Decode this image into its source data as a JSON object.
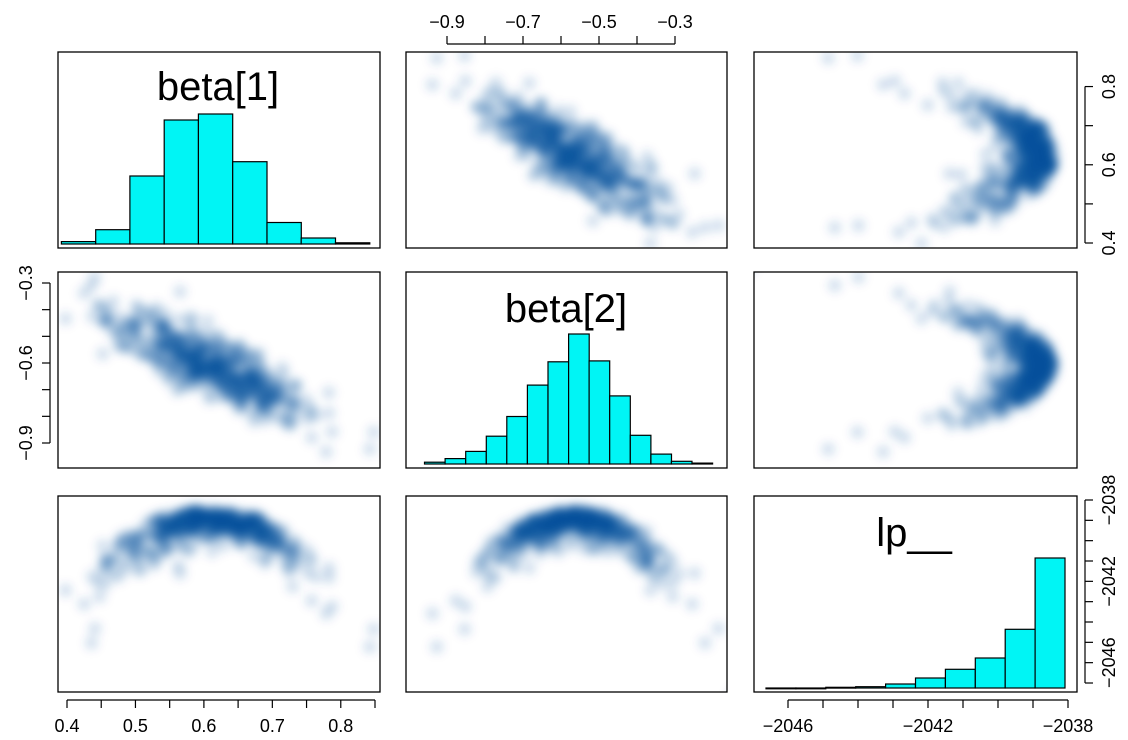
{
  "chart_data": {
    "type": "pairs",
    "variables": [
      "beta[1]",
      "beta[2]",
      "lp__"
    ],
    "hist_color": "#00f5f5",
    "density_color": "#08519c",
    "axes": {
      "beta1": {
        "range": [
          0.38,
          0.86
        ],
        "ticks": [
          "0.4",
          "0.5",
          "0.6",
          "0.7",
          "0.8"
        ],
        "tick_values": [
          0.4,
          0.5,
          0.6,
          0.7,
          0.8
        ]
      },
      "beta2": {
        "range": [
          -1.0,
          -0.27
        ],
        "ticks": [
          "−0.9",
          "−0.7",
          "−0.5",
          "−0.3"
        ],
        "tick_values": [
          -0.9,
          -0.7,
          -0.5,
          -0.3
        ]
      },
      "beta2_left": {
        "ticks": [
          "−0.3",
          "−0.6",
          "−0.9"
        ],
        "tick_values": [
          -0.3,
          -0.6,
          -0.9
        ]
      },
      "beta1_right": {
        "ticks": [
          "0.4",
          "0.6",
          "0.8"
        ],
        "tick_values": [
          0.4,
          0.6,
          0.8
        ]
      },
      "lp": {
        "range": [
          -2047.5,
          -2037.5
        ],
        "ticks": [
          "−2046",
          "−2042",
          "−2038"
        ],
        "tick_values": [
          -2046,
          -2042,
          -2038
        ]
      },
      "lp_right": {
        "ticks": [
          "−2038",
          "−2042",
          "−2046"
        ],
        "tick_values": [
          -2038,
          -2042,
          -2046
        ]
      }
    },
    "histograms": {
      "beta1": {
        "label": "beta[1]",
        "breaks": [
          0.4,
          0.45,
          0.5,
          0.55,
          0.6,
          0.65,
          0.7,
          0.75,
          0.8,
          0.85
        ],
        "counts": [
          2,
          12,
          57,
          104,
          109,
          69,
          18,
          5,
          1
        ]
      },
      "beta2": {
        "label": "beta[2]",
        "breaks": [
          -1.0,
          -0.95,
          -0.9,
          -0.85,
          -0.8,
          -0.75,
          -0.7,
          -0.65,
          -0.6,
          -0.55,
          -0.5,
          -0.45,
          -0.4,
          -0.35,
          -0.3
        ],
        "counts": [
          2,
          6,
          14,
          31,
          53,
          88,
          114,
          145,
          115,
          76,
          32,
          11,
          3,
          1
        ]
      },
      "lp": {
        "label": "lp__",
        "breaks": [
          -2048,
          -2047,
          -2046,
          -2045,
          -2044,
          -2043,
          -2042,
          -2041,
          -2040,
          -2039,
          -2038
        ],
        "counts": [
          0,
          0,
          1,
          2,
          6,
          15,
          28,
          45,
          88,
          195
        ]
      }
    }
  }
}
